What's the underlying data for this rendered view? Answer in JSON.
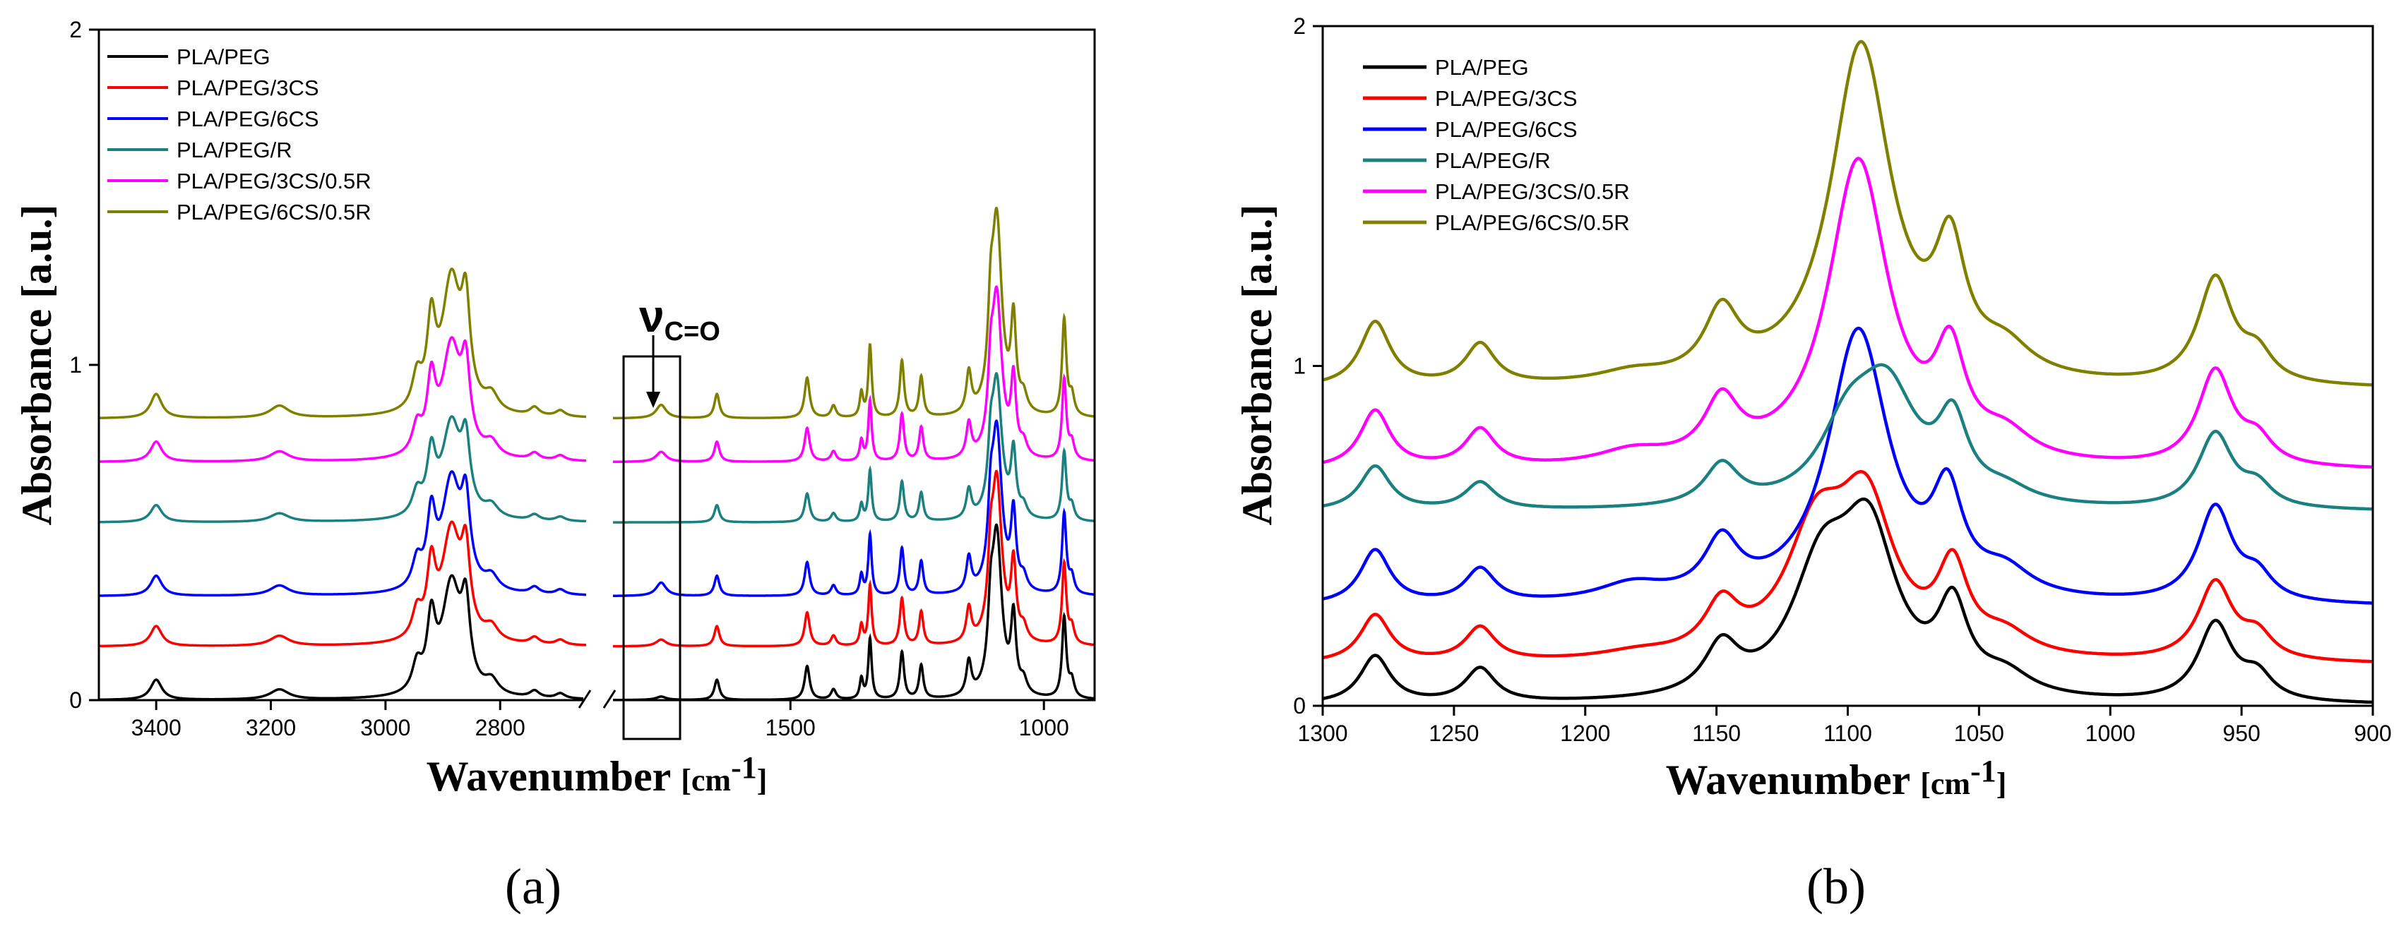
{
  "colors": {
    "PLA/PEG": "#000000",
    "PLA/PEG/3CS": "#ff0000",
    "PLA/PEG/6CS": "#0000ff",
    "PLA/PEG/R": "#1a8080",
    "PLA/PEG/3CS/0.5R": "#ff00ff",
    "PLA/PEG/6CS/0.5R": "#808000"
  },
  "chart_data": [
    {
      "panel": "(a)",
      "type": "line",
      "xlabel": "Wavenumber",
      "xunit": "[cm",
      "xunit_sup": "-1",
      "xunit_close": "]",
      "ylabel": "Absorbance [a.u.]",
      "ylim": [
        0,
        2
      ],
      "yticks": [
        "0",
        "1",
        "2"
      ],
      "xaxis_break": true,
      "xsegments": [
        {
          "range": [
            3500,
            2650
          ],
          "ticks": [
            3400,
            3200,
            3000,
            2800
          ],
          "tick_labels": [
            "3400",
            "3200",
            "3000",
            "2800"
          ]
        },
        {
          "range": [
            1850,
            900
          ],
          "ticks": [
            1500,
            1000
          ],
          "tick_labels": [
            "1500",
            "1000"
          ]
        }
      ],
      "annotation": {
        "symbol": "ν",
        "subscript": "C=O",
        "x": 1755
      },
      "legend": [
        "PLA/PEG",
        "PLA/PEG/3CS",
        "PLA/PEG/6CS",
        "PLA/PEG/R",
        "PLA/PEG/3CS/0.5R",
        "PLA/PEG/6CS/0.5R"
      ],
      "series": [
        {
          "name": "PLA/PEG",
          "baseline": 0.0,
          "scale": 1.0,
          "co_peak": 0.01
        },
        {
          "name": "PLA/PEG/3CS",
          "baseline": 0.16,
          "scale": 1.0,
          "co_peak": 0.02
        },
        {
          "name": "PLA/PEG/6CS",
          "baseline": 0.31,
          "scale": 1.0,
          "co_peak": 0.04
        },
        {
          "name": "PLA/PEG/R",
          "baseline": 0.53,
          "scale": 0.85,
          "co_peak": 0.0
        },
        {
          "name": "PLA/PEG/3CS/0.5R",
          "baseline": 0.71,
          "scale": 1.0,
          "co_peak": 0.03
        },
        {
          "name": "PLA/PEG/6CS/0.5R",
          "baseline": 0.84,
          "scale": 1.2,
          "co_peak": 0.04
        }
      ],
      "peaks": [
        {
          "x": 3400,
          "h": 0.06,
          "w": 12
        },
        {
          "x": 3185,
          "h": 0.03,
          "w": 20
        },
        {
          "x": 2945,
          "h": 0.08,
          "w": 10
        },
        {
          "x": 2920,
          "h": 0.2,
          "w": 9
        },
        {
          "x": 2885,
          "h": 0.33,
          "w": 20
        },
        {
          "x": 2860,
          "h": 0.22,
          "w": 9
        },
        {
          "x": 2815,
          "h": 0.04,
          "w": 14
        },
        {
          "x": 2740,
          "h": 0.02,
          "w": 10
        },
        {
          "x": 2695,
          "h": 0.015,
          "w": 10
        },
        {
          "x": 1645,
          "h": 0.06,
          "w": 6
        },
        {
          "x": 1467,
          "h": 0.1,
          "w": 6
        },
        {
          "x": 1415,
          "h": 0.03,
          "w": 6
        },
        {
          "x": 1360,
          "h": 0.06,
          "w": 4
        },
        {
          "x": 1343,
          "h": 0.18,
          "w": 4
        },
        {
          "x": 1280,
          "h": 0.14,
          "w": 5
        },
        {
          "x": 1242,
          "h": 0.1,
          "w": 5
        },
        {
          "x": 1148,
          "h": 0.1,
          "w": 6
        },
        {
          "x": 1105,
          "h": 0.16,
          "w": 6
        },
        {
          "x": 1093,
          "h": 0.48,
          "w": 12
        },
        {
          "x": 1060,
          "h": 0.22,
          "w": 6
        },
        {
          "x": 1040,
          "h": 0.04,
          "w": 8
        },
        {
          "x": 960,
          "h": 0.24,
          "w": 5
        },
        {
          "x": 945,
          "h": 0.05,
          "w": 6
        }
      ]
    },
    {
      "panel": "(b)",
      "type": "line",
      "xlabel": "Wavenumber",
      "xunit": "[cm",
      "xunit_sup": "-1",
      "xunit_close": "]",
      "ylabel": "Absorbance [a.u.]",
      "xlim": [
        1300,
        900
      ],
      "ylim": [
        0,
        2
      ],
      "xticks": [
        1300,
        1250,
        1200,
        1150,
        1100,
        1050,
        1000,
        950,
        900
      ],
      "xtick_labels": [
        "1300",
        "1250",
        "1200",
        "1150",
        "1100",
        "1050",
        "1000",
        "950",
        "900"
      ],
      "yticks": [
        "0",
        "1",
        "2"
      ],
      "legend": [
        "PLA/PEG",
        "PLA/PEG/3CS",
        "PLA/PEG/6CS",
        "PLA/PEG/R",
        "PLA/PEG/3CS/0.5R",
        "PLA/PEG/6CS/0.5R"
      ],
      "series": [
        {
          "name": "PLA/PEG",
          "baseline": 0.0,
          "peaks": [
            {
              "x": 1280,
              "h": 0.14,
              "w": 7
            },
            {
              "x": 1240,
              "h": 0.1,
              "w": 7
            },
            {
              "x": 1148,
              "h": 0.14,
              "w": 8
            },
            {
              "x": 1110,
              "h": 0.35,
              "w": 14
            },
            {
              "x": 1092,
              "h": 0.45,
              "w": 13
            },
            {
              "x": 1060,
              "h": 0.24,
              "w": 7
            },
            {
              "x": 1040,
              "h": 0.06,
              "w": 12
            },
            {
              "x": 960,
              "h": 0.23,
              "w": 8
            },
            {
              "x": 944,
              "h": 0.07,
              "w": 7
            }
          ]
        },
        {
          "name": "PLA/PEG/3CS",
          "baseline": 0.12,
          "peaks": [
            {
              "x": 1280,
              "h": 0.14,
              "w": 7
            },
            {
              "x": 1240,
              "h": 0.1,
              "w": 7
            },
            {
              "x": 1180,
              "h": 0.02,
              "w": 18
            },
            {
              "x": 1148,
              "h": 0.14,
              "w": 8
            },
            {
              "x": 1112,
              "h": 0.35,
              "w": 14
            },
            {
              "x": 1093,
              "h": 0.42,
              "w": 13
            },
            {
              "x": 1060,
              "h": 0.24,
              "w": 7
            },
            {
              "x": 1040,
              "h": 0.06,
              "w": 12
            },
            {
              "x": 960,
              "h": 0.23,
              "w": 8
            },
            {
              "x": 944,
              "h": 0.07,
              "w": 7
            }
          ]
        },
        {
          "name": "PLA/PEG/6CS",
          "baseline": 0.29,
          "peaks": [
            {
              "x": 1280,
              "h": 0.16,
              "w": 7
            },
            {
              "x": 1240,
              "h": 0.1,
              "w": 7
            },
            {
              "x": 1182,
              "h": 0.05,
              "w": 16
            },
            {
              "x": 1148,
              "h": 0.16,
              "w": 8
            },
            {
              "x": 1096,
              "h": 0.8,
              "w": 14
            },
            {
              "x": 1062,
              "h": 0.27,
              "w": 7
            },
            {
              "x": 1040,
              "h": 0.07,
              "w": 12
            },
            {
              "x": 960,
              "h": 0.28,
              "w": 8
            },
            {
              "x": 944,
              "h": 0.07,
              "w": 7
            }
          ]
        },
        {
          "name": "PLA/PEG/R",
          "baseline": 0.57,
          "peaks": [
            {
              "x": 1280,
              "h": 0.13,
              "w": 7
            },
            {
              "x": 1240,
              "h": 0.08,
              "w": 7
            },
            {
              "x": 1148,
              "h": 0.12,
              "w": 8
            },
            {
              "x": 1100,
              "h": 0.2,
              "w": 13
            },
            {
              "x": 1085,
              "h": 0.32,
              "w": 14
            },
            {
              "x": 1060,
              "h": 0.22,
              "w": 7
            },
            {
              "x": 1040,
              "h": 0.04,
              "w": 12
            },
            {
              "x": 960,
              "h": 0.22,
              "w": 8
            },
            {
              "x": 944,
              "h": 0.06,
              "w": 7
            }
          ]
        },
        {
          "name": "PLA/PEG/3CS/0.5R",
          "baseline": 0.69,
          "peaks": [
            {
              "x": 1280,
              "h": 0.17,
              "w": 7
            },
            {
              "x": 1240,
              "h": 0.11,
              "w": 7
            },
            {
              "x": 1182,
              "h": 0.04,
              "w": 16
            },
            {
              "x": 1148,
              "h": 0.17,
              "w": 8
            },
            {
              "x": 1096,
              "h": 0.9,
              "w": 14
            },
            {
              "x": 1061,
              "h": 0.28,
              "w": 7
            },
            {
              "x": 1040,
              "h": 0.07,
              "w": 12
            },
            {
              "x": 960,
              "h": 0.28,
              "w": 8
            },
            {
              "x": 944,
              "h": 0.07,
              "w": 7
            }
          ]
        },
        {
          "name": "PLA/PEG/6CS/0.5R",
          "baseline": 0.93,
          "peaks": [
            {
              "x": 1280,
              "h": 0.19,
              "w": 7
            },
            {
              "x": 1240,
              "h": 0.12,
              "w": 7
            },
            {
              "x": 1182,
              "h": 0.03,
              "w": 16
            },
            {
              "x": 1148,
              "h": 0.19,
              "w": 8
            },
            {
              "x": 1095,
              "h": 1.0,
              "w": 14
            },
            {
              "x": 1061,
              "h": 0.34,
              "w": 7
            },
            {
              "x": 1040,
              "h": 0.08,
              "w": 12
            },
            {
              "x": 960,
              "h": 0.31,
              "w": 8
            },
            {
              "x": 944,
              "h": 0.08,
              "w": 7
            }
          ]
        }
      ]
    }
  ]
}
